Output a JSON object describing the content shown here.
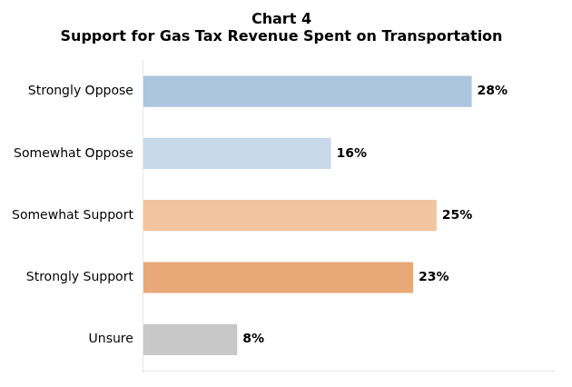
{
  "chart_data": {
    "type": "bar",
    "orientation": "horizontal",
    "title": "Chart 4\nSupport for Gas Tax Revenue Spent on Transportation",
    "categories": [
      "Strongly Oppose",
      "Somewhat Oppose",
      "Somewhat Support",
      "Strongly Support",
      "Unsure"
    ],
    "values": [
      28,
      16,
      25,
      23,
      8
    ],
    "value_labels": [
      "28%",
      "16%",
      "25%",
      "23%",
      "8%"
    ],
    "colors": [
      "#adc6e0",
      "#c8d9ea",
      "#f3c4a0",
      "#e8a878",
      "#c8c8c8"
    ],
    "xlim": [
      0,
      35
    ],
    "data_labels": true,
    "tick_labels": "y",
    "grid": false
  }
}
